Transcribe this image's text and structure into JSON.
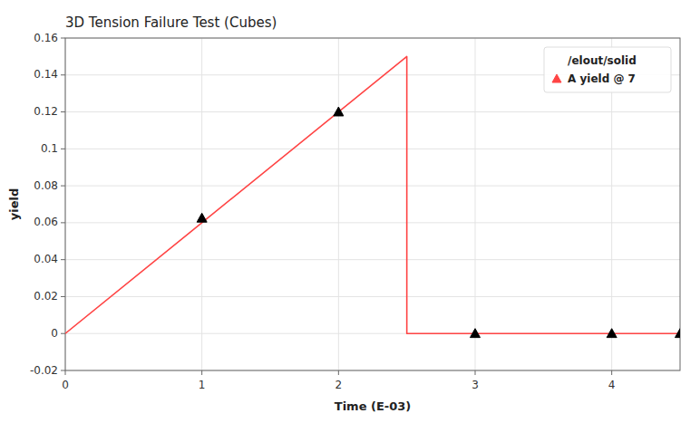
{
  "chart_data": {
    "type": "line",
    "title": "3D Tension Failure Test (Cubes)",
    "x_label": "Time (E-03)",
    "y_label": "yield",
    "annotations": [
      "/elout/solid"
    ],
    "xlim": [
      0,
      4.5
    ],
    "ylim": [
      -0.02,
      0.16
    ],
    "xticks": [
      0,
      1,
      2,
      3,
      4
    ],
    "yticks": [
      -0.02,
      0,
      0.02,
      0.04,
      0.06,
      0.08,
      0.1,
      0.12,
      0.14,
      0.16
    ],
    "grid": true,
    "legend": "upper right",
    "series": [
      {
        "name": "A yield @ 7",
        "type": "line",
        "color": "#ff4444",
        "line_style": "solid",
        "x": [
          0,
          2.5,
          2.5,
          4.5
        ],
        "values": [
          0,
          0.15,
          0,
          0
        ]
      },
      {
        "type": "scatter",
        "color": "black",
        "marker": "triangle",
        "x": [
          1,
          2,
          3,
          4,
          4.5
        ],
        "values": [
          0.0625,
          0.12,
          0,
          0,
          0
        ]
      }
    ]
  }
}
